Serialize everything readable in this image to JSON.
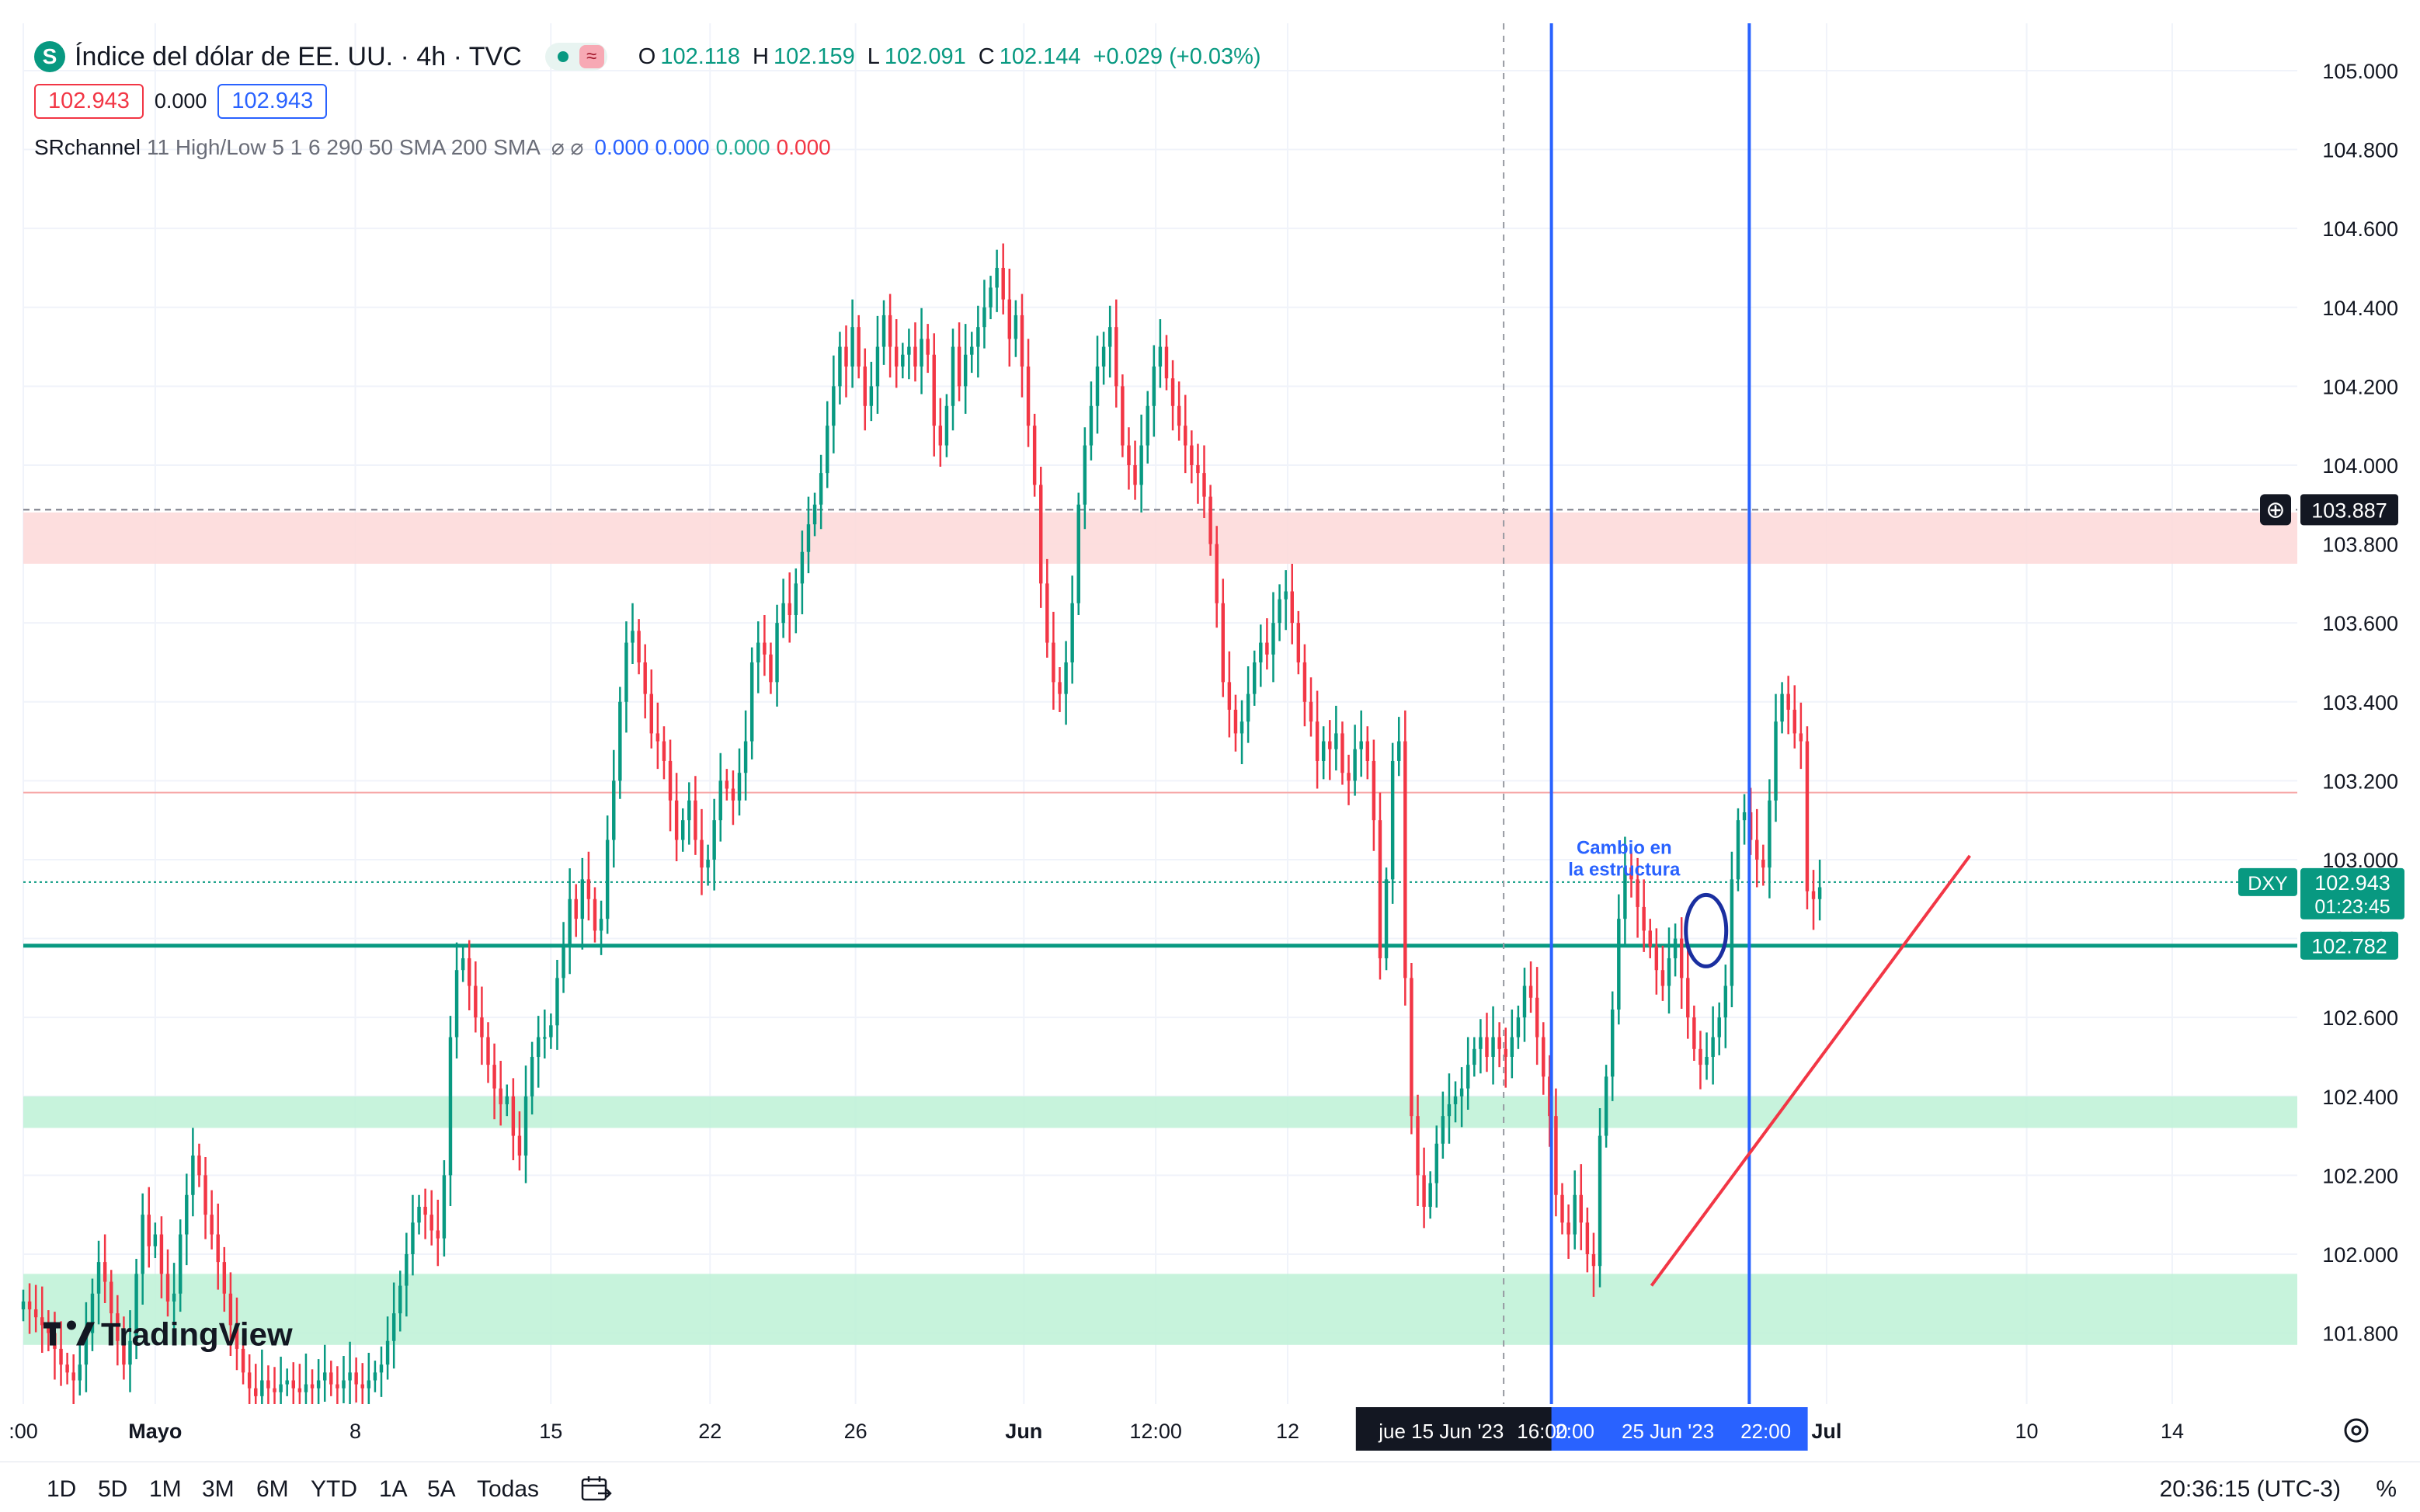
{
  "legend": {
    "symbol_badge": "S",
    "title": "Índice del dólar de EE. UU. · 4h · TVC",
    "toggle_glyph": "≈",
    "ohlc": [
      {
        "k": "O",
        "v": "102.118"
      },
      {
        "k": "H",
        "v": "102.159"
      },
      {
        "k": "L",
        "v": "102.091"
      },
      {
        "k": "C",
        "v": "102.144"
      }
    ],
    "change": "+0.029 (+0.03%)",
    "bid": "102.943",
    "spread": "0.000",
    "ask": "102.943",
    "indicator_name": "SRchannel",
    "indicator_params": "11 High/Low 5 1 6 290 50 SMA 200 SMA",
    "indicator_glyphs": "⌀ ⌀",
    "indicator_values": [
      "0.000",
      "0.000",
      "0.000",
      "0.000"
    ]
  },
  "annotation": {
    "line1": "Cambio en",
    "line2": "la estructura"
  },
  "price_labels": {
    "dashed_level": "103.887",
    "symbol_tag": "DXY",
    "last_price": "102.943",
    "countdown": "01:23:45",
    "green_level": "102.782"
  },
  "crosshair_labels": {
    "left_label": "jue 15 Jun '23",
    "left_time": "16:00",
    "mid_time": "2:00",
    "right_label": "25 Jun '23",
    "right_time": "22:00"
  },
  "watermark": "TradingView",
  "ranges": [
    "1D",
    "5D",
    "1M",
    "3M",
    "6M",
    "YTD",
    "1A",
    "5A",
    "Todas"
  ],
  "clock": "20:36:15 (UTC-3)",
  "percent_toggle": "%",
  "colors": {
    "up": "#089981",
    "down": "#f23645",
    "blue_line": "#2962ff",
    "trend_line": "#f23645",
    "resistance_zone": "#fdd8d8",
    "support_zone": "#bdf1d6"
  },
  "chart_data": {
    "type": "candlestick",
    "title": "Índice del dólar de EE. UU. · 4h · TVC",
    "y_ticks": [
      "101.800",
      "102.000",
      "102.200",
      "102.400",
      "102.600",
      "102.800",
      "103.000",
      "103.200",
      "103.400",
      "103.600",
      "103.800",
      "104.000",
      "104.200",
      "104.400",
      "104.600",
      "104.800",
      "105.000"
    ],
    "y_range": [
      101.62,
      105.12
    ],
    "x_ticks": [
      ":00",
      "Mayo",
      "8",
      "15",
      "22",
      "26",
      "Jun",
      "12:00",
      "12",
      "Jul",
      "10",
      "14"
    ],
    "grid": true,
    "zones": [
      {
        "from": 103.75,
        "to": 103.88,
        "kind": "resistance"
      },
      {
        "from": 102.32,
        "to": 102.4,
        "kind": "support"
      },
      {
        "from": 101.77,
        "to": 101.95,
        "kind": "support"
      }
    ],
    "horizontal_levels": [
      {
        "value": 103.887,
        "style": "dashed"
      },
      {
        "value": 103.17,
        "style": "thin-red"
      },
      {
        "value": 102.943,
        "style": "dotted-green"
      },
      {
        "value": 102.782,
        "style": "green"
      }
    ],
    "trend_line": {
      "from": {
        "t": 0.716,
        "price": 101.92
      },
      "to": {
        "t": 0.856,
        "price": 103.01
      }
    },
    "closes": [
      101.88,
      101.86,
      101.84,
      101.82,
      101.8,
      101.76,
      101.72,
      101.7,
      101.68,
      101.72,
      101.8,
      101.9,
      101.98,
      101.93,
      101.85,
      101.78,
      101.72,
      101.78,
      101.95,
      102.1,
      102.02,
      102.05,
      101.95,
      101.88,
      101.9,
      102.05,
      102.15,
      102.25,
      102.2,
      102.1,
      102.05,
      101.98,
      101.9,
      101.82,
      101.76,
      101.7,
      101.66,
      101.64,
      101.68,
      101.66,
      101.65,
      101.67,
      101.68,
      101.66,
      101.65,
      101.67,
      101.66,
      101.68,
      101.7,
      101.67,
      101.66,
      101.68,
      101.7,
      101.67,
      101.66,
      101.68,
      101.7,
      101.72,
      101.78,
      101.85,
      101.92,
      102.0,
      102.08,
      102.12,
      102.1,
      102.06,
      102.04,
      102.2,
      102.55,
      102.72,
      102.75,
      102.68,
      102.6,
      102.55,
      102.48,
      102.42,
      102.38,
      102.4,
      102.3,
      102.25,
      102.4,
      102.5,
      102.55,
      102.55,
      102.58,
      102.7,
      102.78,
      102.9,
      102.85,
      102.95,
      102.9,
      102.82,
      102.85,
      103.05,
      103.2,
      103.4,
      103.55,
      103.58,
      103.5,
      103.42,
      103.32,
      103.3,
      103.25,
      103.15,
      103.05,
      103.1,
      103.15,
      103.05,
      102.98,
      103.0,
      103.1,
      103.2,
      103.18,
      103.15,
      103.22,
      103.3,
      103.5,
      103.55,
      103.52,
      103.45,
      103.6,
      103.65,
      103.62,
      103.7,
      103.78,
      103.85,
      103.9,
      103.98,
      104.1,
      104.2,
      104.3,
      104.25,
      104.35,
      104.25,
      104.15,
      104.2,
      104.3,
      104.38,
      104.3,
      104.25,
      104.28,
      104.3,
      104.25,
      104.32,
      104.28,
      104.1,
      104.05,
      104.15,
      104.3,
      104.2,
      104.28,
      104.3,
      104.35,
      104.4,
      104.45,
      104.5,
      104.42,
      104.32,
      104.38,
      104.25,
      104.1,
      103.95,
      103.7,
      103.55,
      103.45,
      103.42,
      103.5,
      103.65,
      103.9,
      104.05,
      104.15,
      104.25,
      104.3,
      104.35,
      104.2,
      104.05,
      104.0,
      103.95,
      104.05,
      104.15,
      104.25,
      104.3,
      104.22,
      104.15,
      104.1,
      104.05,
      104.0,
      103.98,
      103.92,
      103.8,
      103.65,
      103.45,
      103.38,
      103.32,
      103.35,
      103.42,
      103.5,
      103.55,
      103.52,
      103.6,
      103.66,
      103.68,
      103.6,
      103.5,
      103.4,
      103.35,
      103.25,
      103.3,
      103.28,
      103.32,
      103.22,
      103.2,
      103.28,
      103.3,
      103.25,
      103.1,
      102.75,
      102.95,
      103.25,
      103.3,
      102.7,
      102.35,
      102.2,
      102.12,
      102.18,
      102.28,
      102.35,
      102.38,
      102.4,
      102.42,
      102.48,
      102.52,
      102.55,
      102.5,
      102.55,
      102.52,
      102.5,
      102.55,
      102.6,
      102.68,
      102.65,
      102.55,
      102.45,
      102.35,
      102.15,
      102.08,
      102.05,
      102.15,
      102.08,
      102.0,
      101.97,
      102.3,
      102.45,
      102.62,
      102.85,
      102.98,
      102.95,
      102.88,
      102.82,
      102.78,
      102.72,
      102.68,
      102.75,
      102.8,
      102.7,
      102.6,
      102.52,
      102.48,
      102.5,
      102.55,
      102.6,
      102.68,
      102.95,
      103.1,
      103.12,
      103.05,
      103.0,
      102.98,
      103.15,
      103.35,
      103.42,
      103.38,
      103.32,
      103.3,
      102.92,
      102.9,
      102.93
    ]
  }
}
